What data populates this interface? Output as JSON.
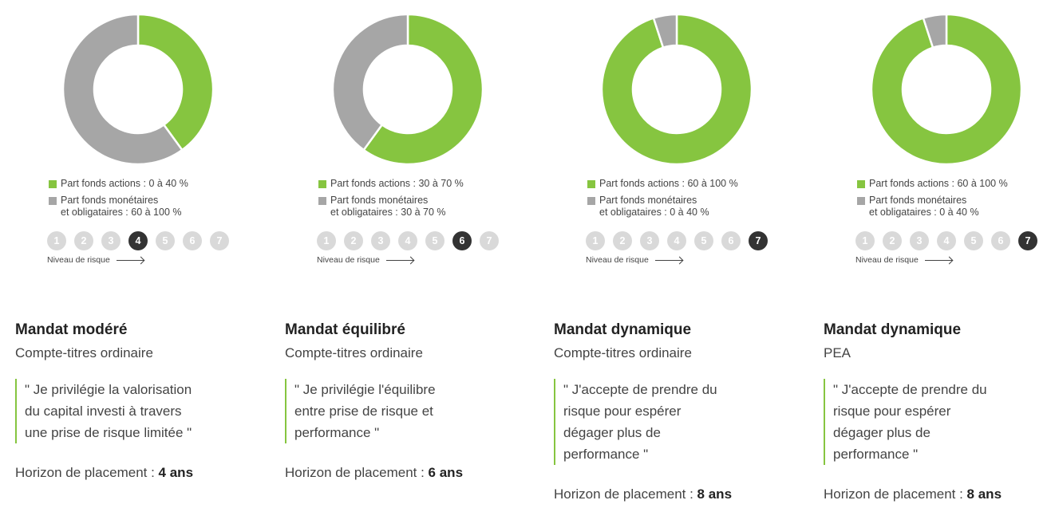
{
  "colors": {
    "actions": "#86c540",
    "monetaires": "#a6a6a6",
    "risk_inactive": "#d9d9d9",
    "risk_active": "#333333",
    "accent_border": "#86c540"
  },
  "risk_caption": "Niveau de risque",
  "chart_data": [
    {
      "type": "pie",
      "slices": [
        {
          "label": "Part fonds actions",
          "value": 40
        },
        {
          "label": "Part fonds monétaires et obligataires",
          "value": 60
        }
      ],
      "legend": [
        {
          "lines": [
            "Part fonds actions : 0 à 40 %"
          ]
        },
        {
          "lines": [
            "Part fonds monétaires",
            "et obligataires : 60 à 100 %"
          ]
        }
      ]
    },
    {
      "type": "pie",
      "slices": [
        {
          "label": "Part fonds actions",
          "value": 60
        },
        {
          "label": "Part fonds monétaires et obligataires",
          "value": 40
        }
      ],
      "legend": [
        {
          "lines": [
            "Part fonds actions : 30 à 70 %"
          ]
        },
        {
          "lines": [
            "Part fonds monétaires",
            "et obligataires : 30 à 70 %"
          ]
        }
      ]
    },
    {
      "type": "pie",
      "slices": [
        {
          "label": "Part fonds actions",
          "value": 95
        },
        {
          "label": "Part fonds monétaires et obligataires",
          "value": 5
        }
      ],
      "legend": [
        {
          "lines": [
            "Part fonds actions : 60 à 100 %"
          ]
        },
        {
          "lines": [
            "Part fonds monétaires",
            "et obligataires : 0 à 40 %"
          ]
        }
      ]
    },
    {
      "type": "pie",
      "slices": [
        {
          "label": "Part fonds actions",
          "value": 95
        },
        {
          "label": "Part fonds monétaires et obligataires",
          "value": 5
        }
      ],
      "legend": [
        {
          "lines": [
            "Part fonds actions : 60 à 100 %"
          ]
        },
        {
          "lines": [
            "Part fonds monétaires",
            "et obligataires : 0 à 40 %"
          ]
        }
      ]
    }
  ],
  "cards": [
    {
      "risk_levels": [
        "1",
        "2",
        "3",
        "4",
        "5",
        "6",
        "7"
      ],
      "risk_active": 4,
      "title": "Mandat modéré",
      "subtitle": "Compte-titres ordinaire",
      "quote": [
        "\" Je privilégie la valorisation",
        "du capital investi à travers",
        "une prise de risque limitée \""
      ],
      "horizon_label": "Horizon de placement : ",
      "horizon_value": "4 ans"
    },
    {
      "risk_levels": [
        "1",
        "2",
        "3",
        "4",
        "5",
        "6",
        "7"
      ],
      "risk_active": 6,
      "title": "Mandat équilibré",
      "subtitle": "Compte-titres ordinaire",
      "quote": [
        "\" Je privilégie l'équilibre",
        "entre prise de risque et",
        "performance \""
      ],
      "horizon_label": "Horizon de placement : ",
      "horizon_value": "6 ans"
    },
    {
      "risk_levels": [
        "1",
        "2",
        "3",
        "4",
        "5",
        "6",
        "7"
      ],
      "risk_active": 7,
      "title": "Mandat dynamique",
      "subtitle": "Compte-titres ordinaire",
      "quote": [
        "\" J'accepte de prendre du",
        "risque pour espérer",
        "dégager plus de",
        "performance \""
      ],
      "horizon_label": "Horizon de placement : ",
      "horizon_value": "8 ans"
    },
    {
      "risk_levels": [
        "1",
        "2",
        "3",
        "4",
        "5",
        "6",
        "7"
      ],
      "risk_active": 7,
      "title": "Mandat dynamique",
      "subtitle": "PEA",
      "quote": [
        "\" J'accepte de prendre du",
        "risque pour espérer",
        "dégager plus de",
        "performance \""
      ],
      "horizon_label": "Horizon de placement : ",
      "horizon_value": "8 ans"
    }
  ]
}
